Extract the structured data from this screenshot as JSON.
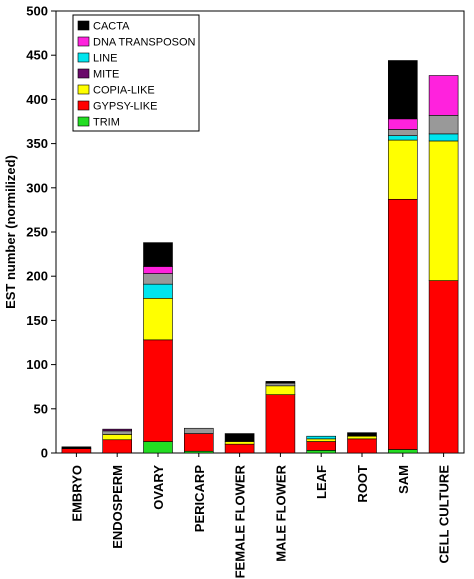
{
  "chart_data": {
    "type": "bar",
    "stacked": true,
    "title": "",
    "xlabel": "",
    "ylabel": "EST number (normilized)",
    "ylim": [
      0,
      500
    ],
    "yticks": [
      0,
      50,
      100,
      150,
      200,
      250,
      300,
      350,
      400,
      450,
      500
    ],
    "grid": false,
    "legend_position": "top-left",
    "categories": [
      "EMBRYO",
      "ENDOSPERM",
      "OVARY",
      "PERICARP",
      "FEMALE FLOWER",
      "MALE FLOWER",
      "LEAF",
      "ROOT",
      "SAM",
      "CELL CULTURE"
    ],
    "series": [
      {
        "name": "TRIM",
        "color": "#22dd22",
        "values": [
          0,
          0,
          13,
          2,
          0,
          0,
          3,
          0,
          4,
          0
        ]
      },
      {
        "name": "GYPSY-LIKE",
        "color": "#ff0000",
        "values": [
          5,
          15,
          115,
          20,
          10,
          66,
          10,
          16,
          283,
          195
        ]
      },
      {
        "name": "COPIA-LIKE",
        "color": "#ffff00",
        "values": [
          0,
          6,
          47,
          0,
          3,
          10,
          3,
          3,
          67,
          158
        ]
      },
      {
        "name": "LINE",
        "color": "#00e5ee",
        "values": [
          0,
          0,
          16,
          0,
          0,
          0,
          3,
          0,
          5,
          8
        ]
      },
      {
        "name": "",
        "color": "#999999",
        "values": [
          0,
          4,
          12,
          6,
          0,
          3,
          0,
          0,
          7,
          21
        ]
      },
      {
        "name": "MITE",
        "color": "#6a0a6a",
        "values": [
          0,
          2,
          0,
          0,
          0,
          0,
          0,
          0,
          0,
          0
        ]
      },
      {
        "name": "DNA TRANSPOSON",
        "color": "#ff22dd",
        "values": [
          0,
          0,
          8,
          0,
          0,
          0,
          0,
          0,
          12,
          45
        ]
      },
      {
        "name": "CACTA",
        "color": "#000000",
        "values": [
          2,
          0,
          27,
          0,
          9,
          2,
          0,
          4,
          66,
          0
        ]
      }
    ],
    "legend": [
      {
        "name": "CACTA",
        "color": "#000000"
      },
      {
        "name": "DNA TRANSPOSON",
        "color": "#ff22dd"
      },
      {
        "name": "LINE",
        "color": "#00e5ee"
      },
      {
        "name": "MITE",
        "color": "#6a0a6a"
      },
      {
        "name": "COPIA-LIKE",
        "color": "#ffff00"
      },
      {
        "name": "GYPSY-LIKE",
        "color": "#ff0000"
      },
      {
        "name": "TRIM",
        "color": "#22dd22"
      }
    ]
  }
}
